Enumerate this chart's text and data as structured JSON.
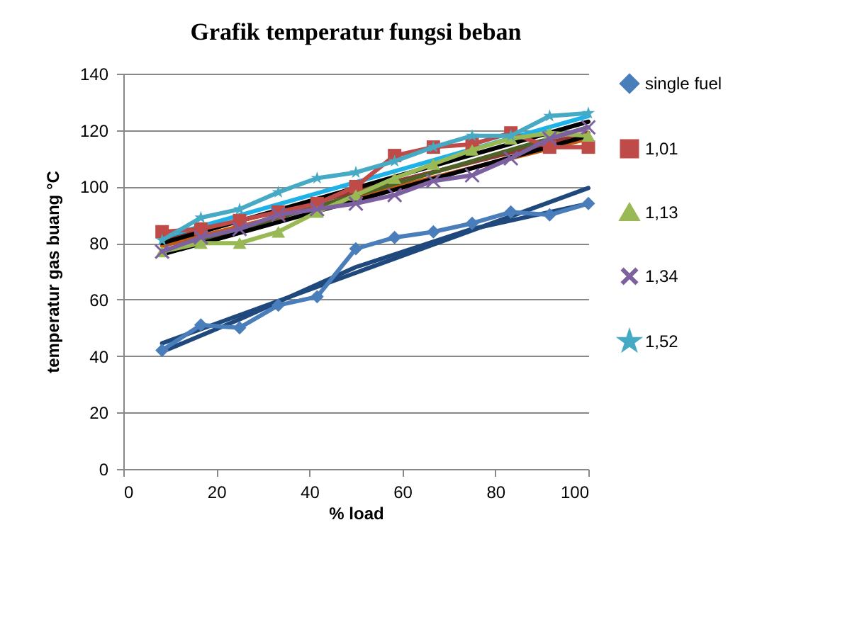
{
  "chart_data": {
    "type": "line",
    "title": "Grafik temperatur fungsi beban",
    "xlabel": "% load",
    "ylabel": "temperatur gas buang °C",
    "x": [
      8.33,
      16.67,
      25,
      33.33,
      41.67,
      50,
      58.33,
      66.67,
      75,
      83.33,
      91.67,
      100
    ],
    "xlim": [
      0,
      100
    ],
    "xticks": [
      0,
      20,
      40,
      60,
      80,
      100
    ],
    "ylim": [
      0,
      140
    ],
    "yticks": [
      0,
      20,
      40,
      60,
      80,
      100,
      120,
      140
    ],
    "grid": "y",
    "legend": "right",
    "line_style": "solid",
    "series": [
      {
        "name": "single fuel",
        "color": "#4a7ebb",
        "marker": "diamond",
        "values": [
          42,
          51,
          50,
          58,
          61,
          78,
          82,
          84,
          87,
          91,
          90,
          94
        ]
      },
      {
        "name": "1,01",
        "color": "#be4b48",
        "marker": "square",
        "values": [
          84,
          85,
          88,
          91,
          94,
          100,
          111,
          114,
          115,
          119,
          114,
          114
        ]
      },
      {
        "name": "1,13",
        "color": "#98b954",
        "marker": "triangle",
        "values": [
          77,
          80,
          80,
          84,
          91,
          97,
          103,
          108,
          113,
          117,
          119,
          118
        ]
      },
      {
        "name": "1,34",
        "color": "#7d60a0",
        "marker": "cross",
        "values": [
          77,
          82,
          85,
          90,
          92,
          94,
          97,
          102,
          104,
          110,
          117,
          121
        ]
      },
      {
        "name": "1,52",
        "color": "#46aac5",
        "marker": "star",
        "values": [
          81,
          89,
          92,
          98,
          103,
          105,
          109,
          114,
          118,
          118,
          125,
          126
        ]
      },
      {
        "type": "line",
        "color": "#1f497d",
        "marker": "none",
        "x": [
          8.33,
          100
        ],
        "values": [
          44.5,
          99.5
        ]
      },
      {
        "type": "line",
        "color": "#1f497d",
        "marker": "none",
        "x": [
          8.33,
          25,
          50,
          75,
          100
        ],
        "values": [
          41.5,
          53,
          71.5,
          85,
          94
        ]
      },
      {
        "type": "line",
        "color": "#c55a11",
        "marker": "none",
        "x": [
          8.33,
          100
        ],
        "values": [
          79,
          117
        ]
      },
      {
        "type": "line",
        "color": "#943634",
        "marker": "none",
        "x": [
          8.33,
          100
        ],
        "values": [
          81,
          119
        ]
      },
      {
        "type": "line",
        "color": "#4f6228",
        "marker": "none",
        "x": [
          8.33,
          100
        ],
        "values": [
          77,
          121
        ]
      },
      {
        "type": "line",
        "color": "#000000",
        "marker": "none",
        "x": [
          8.33,
          100
        ],
        "values": [
          76,
          118
        ]
      },
      {
        "type": "line",
        "color": "#000000",
        "marker": "none",
        "x": [
          8.33,
          100
        ],
        "values": [
          80,
          123
        ]
      },
      {
        "type": "line",
        "color": "#1fb2e8",
        "marker": "none",
        "x": [
          8.33,
          100
        ],
        "values": [
          82,
          125
        ]
      }
    ]
  }
}
